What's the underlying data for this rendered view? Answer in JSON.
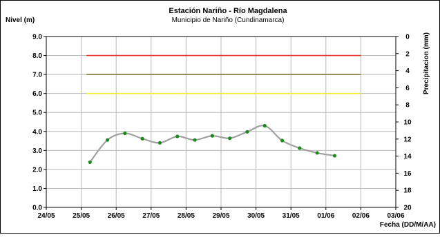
{
  "chart_data": {
    "type": "line",
    "title": "Estación Nariño  - Río Magdalena",
    "subtitle": "Municipio de Nariño (Cundinamarca)",
    "ylabel": "Nivel (m)",
    "y2label": "Precipitacion (mm)",
    "xlabel": "Fecha (DD/M/AA)",
    "ylim": [
      0,
      9
    ],
    "y2lim": [
      0,
      20
    ],
    "y2_inverted": true,
    "grid": true,
    "x_ticks": [
      "24/05",
      "25/05",
      "26/05",
      "27/05",
      "28/05",
      "29/05",
      "30/05",
      "31/05",
      "01/06",
      "02/06",
      "03/06"
    ],
    "y_ticks": [
      "0.0",
      "1.0",
      "2.0",
      "3.0",
      "4.0",
      "5.0",
      "6.0",
      "7.0",
      "8.0",
      "9.0"
    ],
    "y2_ticks": [
      "0",
      "2",
      "4",
      "6",
      "8",
      "10",
      "12",
      "14",
      "16",
      "18",
      "20"
    ],
    "threshold_lines": [
      {
        "level": 8.0,
        "color": "#e8312a",
        "from_day": 1.15,
        "to_day": 9.0
      },
      {
        "level": 7.0,
        "color": "#8a7a3a",
        "from_day": 1.15,
        "to_day": 9.0
      },
      {
        "level": 6.0,
        "color": "#f2ef2a",
        "from_day": 1.15,
        "to_day": 9.0
      }
    ],
    "series": [
      {
        "color": "#a0a0a0",
        "marker_color": "#1a8a1a",
        "x": [
          1.25,
          1.75,
          2.25,
          2.75,
          3.25,
          3.75,
          4.25,
          4.75,
          5.25,
          5.75,
          6.25,
          6.75,
          7.25,
          7.75,
          8.25
        ],
        "values": [
          2.38,
          3.55,
          3.9,
          3.62,
          3.4,
          3.74,
          3.55,
          3.77,
          3.64,
          3.98,
          4.3,
          3.52,
          3.12,
          2.87,
          2.72
        ]
      }
    ]
  }
}
